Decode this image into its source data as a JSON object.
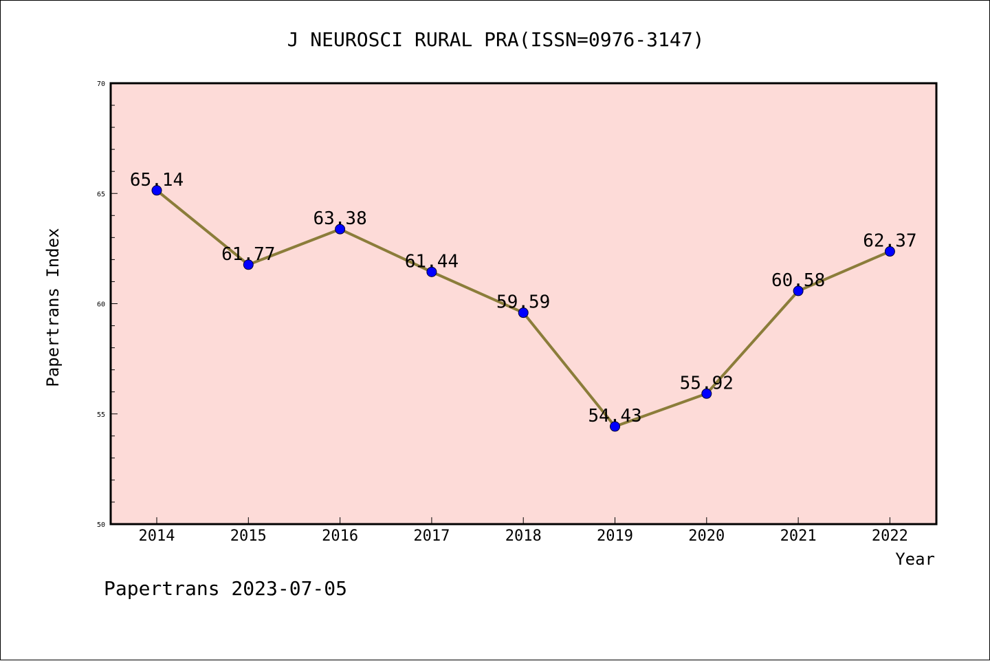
{
  "chart_data": {
    "type": "line",
    "title": "J NEUROSCI RURAL PRA(ISSN=0976-3147)",
    "xlabel": "Year",
    "ylabel": "Papertrans Index",
    "categories": [
      "2014",
      "2015",
      "2016",
      "2017",
      "2018",
      "2019",
      "2020",
      "2021",
      "2022"
    ],
    "values": [
      65.14,
      61.77,
      63.38,
      61.44,
      59.59,
      54.43,
      55.92,
      60.58,
      62.37
    ],
    "data_labels": [
      "65.14",
      "61.77",
      "63.38",
      "61.44",
      "59.59",
      "54.43",
      "55.92",
      "60.58",
      "62.37"
    ],
    "ylim": [
      50,
      70
    ],
    "yticks": [
      50,
      55,
      60,
      65,
      70
    ],
    "ytick_labels": [
      "50",
      "55",
      "60",
      "65",
      "70"
    ],
    "grid": false,
    "legend": "none"
  },
  "footer": {
    "text": "Papertrans 2023-07-05"
  },
  "colors": {
    "plot_background": "#fddbd8",
    "line": "#8b7d3a",
    "marker": "#0000ff",
    "axis": "#000000"
  }
}
